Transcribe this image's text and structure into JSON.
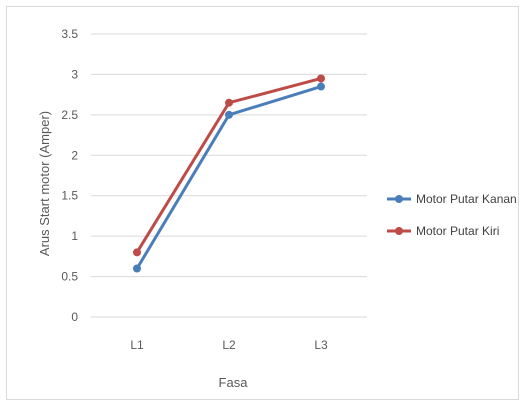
{
  "chart_data": {
    "type": "line",
    "categories": [
      "L1",
      "L2",
      "L3"
    ],
    "series": [
      {
        "name": "Motor Putar Kanan",
        "values": [
          0.6,
          2.5,
          2.85
        ],
        "color": "#4A7EBB"
      },
      {
        "name": "Motor Putar Kiri",
        "values": [
          0.8,
          2.65,
          2.95
        ],
        "color": "#BE4B48"
      }
    ],
    "yticks": [
      0,
      0.5,
      1,
      1.5,
      2,
      2.5,
      3,
      3.5
    ],
    "ylim": [
      0,
      3.5
    ],
    "xlabel": "Fasa",
    "ylabel": "Arus Start motor (Amper)",
    "grid": "horizontal",
    "legend_position": "right"
  }
}
